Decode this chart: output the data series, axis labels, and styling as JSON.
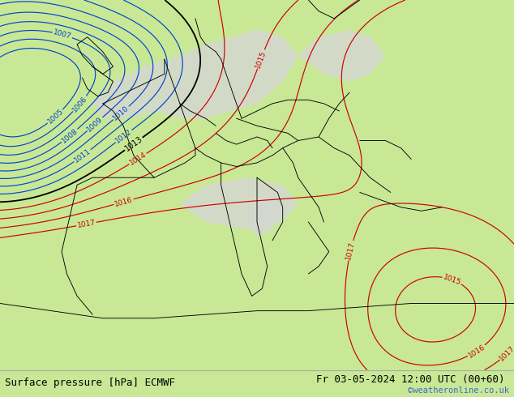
{
  "title_left": "Surface pressure [hPa] ECMWF",
  "title_right": "Fr 03-05-2024 12:00 UTC (00+60)",
  "credit": "©weatheronline.co.uk",
  "bg_green": "#c8e896",
  "bg_gray": "#d8d8d8",
  "fig_width": 6.34,
  "fig_height": 4.9,
  "dpi": 100,
  "bottom_bar_height": 0.068,
  "title_fontsize": 9.0,
  "credit_fontsize": 7.5,
  "credit_color": "#4466cc",
  "blue_color": "#0044cc",
  "red_color": "#cc0000",
  "black_color": "#000000",
  "blue_levels": [
    1005,
    1006,
    1007,
    1008,
    1009,
    1010,
    1011,
    1012
  ],
  "black_levels": [
    1013
  ],
  "red_levels": [
    1014,
    1015,
    1016,
    1017
  ]
}
